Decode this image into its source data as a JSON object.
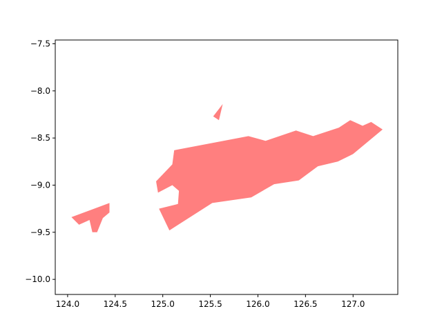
{
  "chart_data": {
    "type": "map",
    "title": "",
    "xlabel": "",
    "ylabel": "",
    "xlim": [
      123.87,
      127.47
    ],
    "ylim": [
      -10.16,
      -7.46
    ],
    "grid": false,
    "x_ticks": [
      124.0,
      124.5,
      125.0,
      125.5,
      126.0,
      126.5,
      127.0
    ],
    "x_tick_labels": [
      "124.0",
      "124.5",
      "125.0",
      "125.5",
      "126.0",
      "126.5",
      "127.0"
    ],
    "y_ticks": [
      -7.5,
      -8.0,
      -8.5,
      -9.0,
      -9.5,
      -10.0
    ],
    "y_tick_labels": [
      "−7.5",
      "−8.0",
      "−8.5",
      "−9.0",
      "−9.5",
      "−10.0"
    ],
    "fill_color": "#ff7f7f",
    "regions": [
      {
        "polygons": [
          [
            [
              125.12,
              -8.63
            ],
            [
              125.9,
              -8.48
            ],
            [
              126.08,
              -8.53
            ],
            [
              126.4,
              -8.42
            ],
            [
              126.58,
              -8.48
            ],
            [
              126.85,
              -8.39
            ],
            [
              126.97,
              -8.31
            ],
            [
              127.1,
              -8.37
            ],
            [
              127.19,
              -8.33
            ],
            [
              127.31,
              -8.41
            ],
            [
              127.0,
              -8.67
            ],
            [
              126.84,
              -8.75
            ],
            [
              126.63,
              -8.8
            ],
            [
              126.43,
              -8.95
            ],
            [
              126.17,
              -8.99
            ],
            [
              125.93,
              -9.13
            ],
            [
              125.52,
              -9.19
            ],
            [
              125.38,
              -9.28
            ],
            [
              125.07,
              -9.48
            ],
            [
              124.96,
              -9.25
            ],
            [
              125.16,
              -9.2
            ],
            [
              125.17,
              -9.06
            ],
            [
              125.1,
              -9.0
            ],
            [
              124.95,
              -9.08
            ],
            [
              124.93,
              -8.96
            ],
            [
              125.1,
              -8.78
            ]
          ],
          [
            [
              125.53,
              -8.27
            ],
            [
              125.63,
              -8.14
            ],
            [
              125.59,
              -8.31
            ]
          ],
          [
            [
              124.04,
              -9.34
            ],
            [
              124.44,
              -9.19
            ],
            [
              124.44,
              -9.29
            ],
            [
              124.37,
              -9.35
            ],
            [
              124.31,
              -9.5
            ],
            [
              124.26,
              -9.5
            ],
            [
              124.23,
              -9.37
            ],
            [
              124.12,
              -9.42
            ]
          ]
        ]
      }
    ]
  }
}
